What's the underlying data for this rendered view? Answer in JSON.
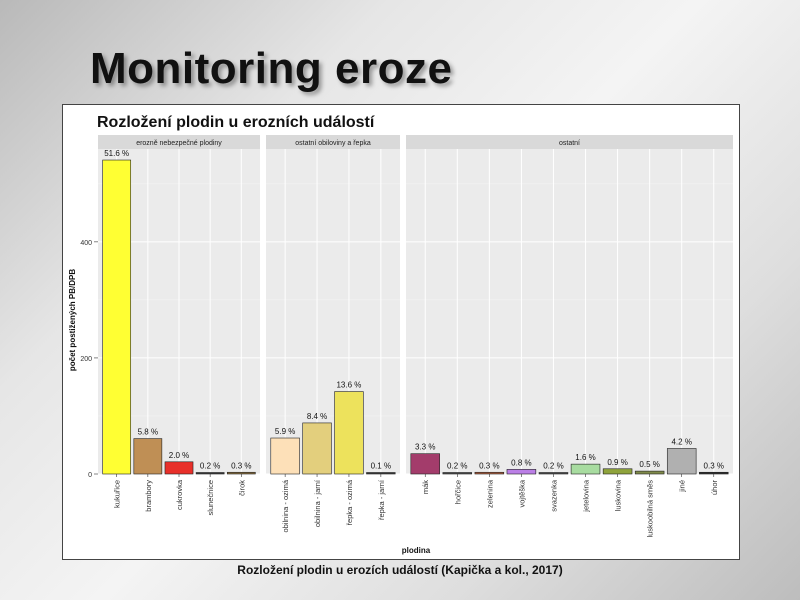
{
  "slide": {
    "title": "Monitoring eroze",
    "caption": "Rozložení plodin u erozích událostí (Kapička a kol., 2017)"
  },
  "chart_data": {
    "type": "bar",
    "title": "Rozložení plodin u erozních událostí",
    "xlabel": "plodina",
    "ylabel": "počet postižených PB/DPB",
    "ylim": [
      0,
      560
    ],
    "yticks": [
      0,
      200,
      400
    ],
    "grid": true,
    "panels": [
      {
        "name": "erozně nebezpečné plodiny",
        "categories": [
          "kukuřice",
          "brambory",
          "cukrovka",
          "slunečnice",
          "čirok"
        ],
        "values": [
          541,
          61,
          21,
          2,
          3
        ],
        "labels": [
          "51.6 %",
          "5.8 %",
          "2.0 %",
          "0.2 %",
          "0.3 %"
        ],
        "colors": [
          "#ffff33",
          "#bf8f55",
          "#e8302a",
          "#3a3a3a",
          "#8a7040"
        ]
      },
      {
        "name": "ostatní obiloviny a řepka",
        "categories": [
          "obilnina - ozimá",
          "obilnina - jarní",
          "řepka - ozimá",
          "řepka - jarní"
        ],
        "values": [
          62,
          88,
          142,
          1
        ],
        "labels": [
          "5.9 %",
          "8.4 %",
          "13.6 %",
          "0.1 %"
        ],
        "colors": [
          "#fde0b8",
          "#e3cf7d",
          "#ede25c",
          "#3a3a3a"
        ]
      },
      {
        "name": "ostatní",
        "categories": [
          "mák",
          "hořčice",
          "zelenina",
          "vojtěška",
          "svazenka",
          "jetelovina",
          "luskovina",
          "luskoobilná směs",
          "jiné",
          "úhor"
        ],
        "values": [
          35,
          2,
          3,
          8,
          2,
          17,
          9,
          5,
          44,
          3
        ],
        "labels": [
          "3.3 %",
          "0.2 %",
          "0.3 %",
          "0.8 %",
          "0.2 %",
          "1.6 %",
          "0.9 %",
          "0.5 %",
          "4.2 %",
          "0.3 %"
        ],
        "colors": [
          "#a33c6b",
          "#4a4a4a",
          "#b06040",
          "#bb7fe6",
          "#4a4a4a",
          "#a8dca0",
          "#8fa33c",
          "#7f8a4a",
          "#b0b0b0",
          "#303030"
        ]
      }
    ]
  }
}
